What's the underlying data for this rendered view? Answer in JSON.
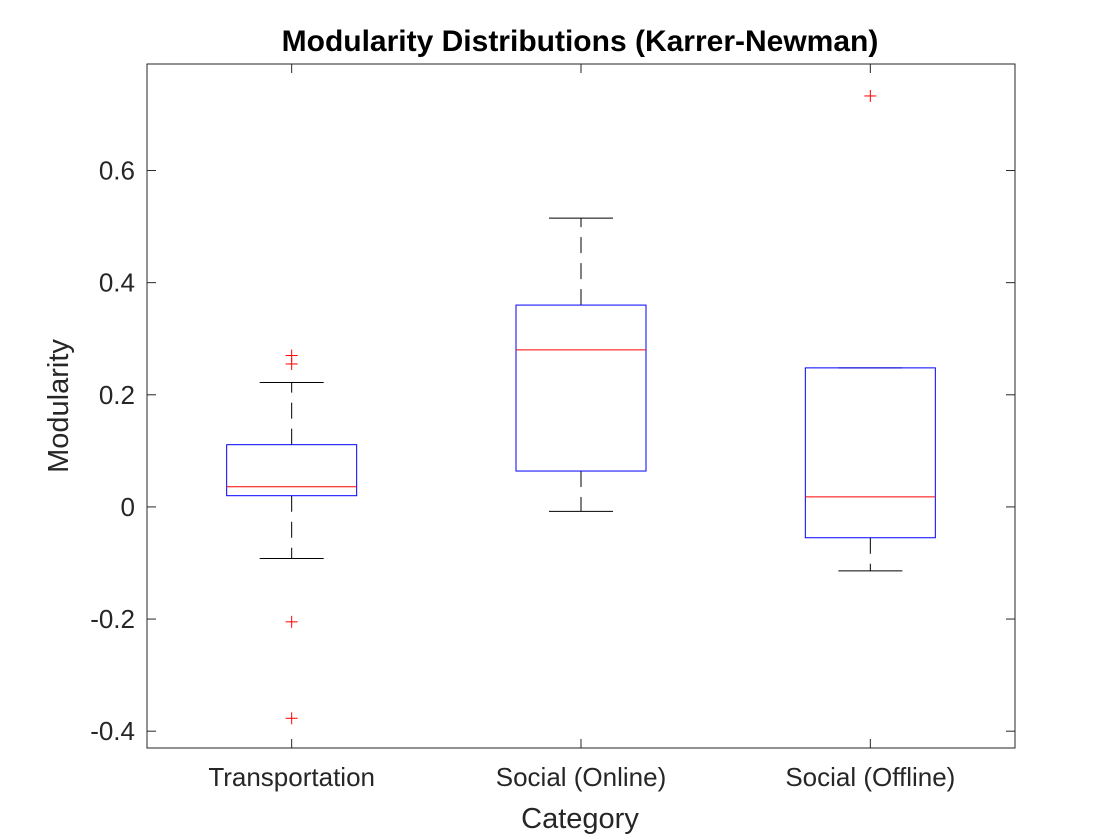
{
  "chart_data": {
    "type": "boxplot",
    "title": "Modularity Distributions (Karrer-Newman)",
    "xlabel": "Category",
    "ylabel": "Modularity",
    "categories": [
      "Transportation",
      "Social (Online)",
      "Social (Offline)"
    ],
    "ylim": [
      -0.43,
      0.79
    ],
    "yticks": [
      -0.4,
      -0.2,
      0,
      0.2,
      0.4,
      0.6
    ],
    "ytick_labels": [
      "-0.4",
      "-0.2",
      "0",
      "0.2",
      "0.4",
      "0.6"
    ],
    "grid": false,
    "boxes": [
      {
        "category": "Transportation",
        "whisker_low": -0.092,
        "q1": 0.02,
        "median": 0.036,
        "q3": 0.111,
        "whisker_high": 0.222,
        "outliers": [
          0.27,
          0.255,
          -0.205,
          -0.377
        ]
      },
      {
        "category": "Social (Online)",
        "whisker_low": -0.008,
        "q1": 0.064,
        "median": 0.28,
        "q3": 0.36,
        "whisker_high": 0.515,
        "outliers": []
      },
      {
        "category": "Social (Offline)",
        "whisker_low": -0.114,
        "q1": -0.055,
        "median": 0.018,
        "q3": 0.248,
        "whisker_high": 0.248,
        "outliers": [
          0.733
        ]
      }
    ],
    "colors": {
      "box": "#0000ff",
      "median": "#ff0000",
      "whisker": "#000000",
      "outlier": "#ff0000",
      "axis": "#262626"
    }
  }
}
